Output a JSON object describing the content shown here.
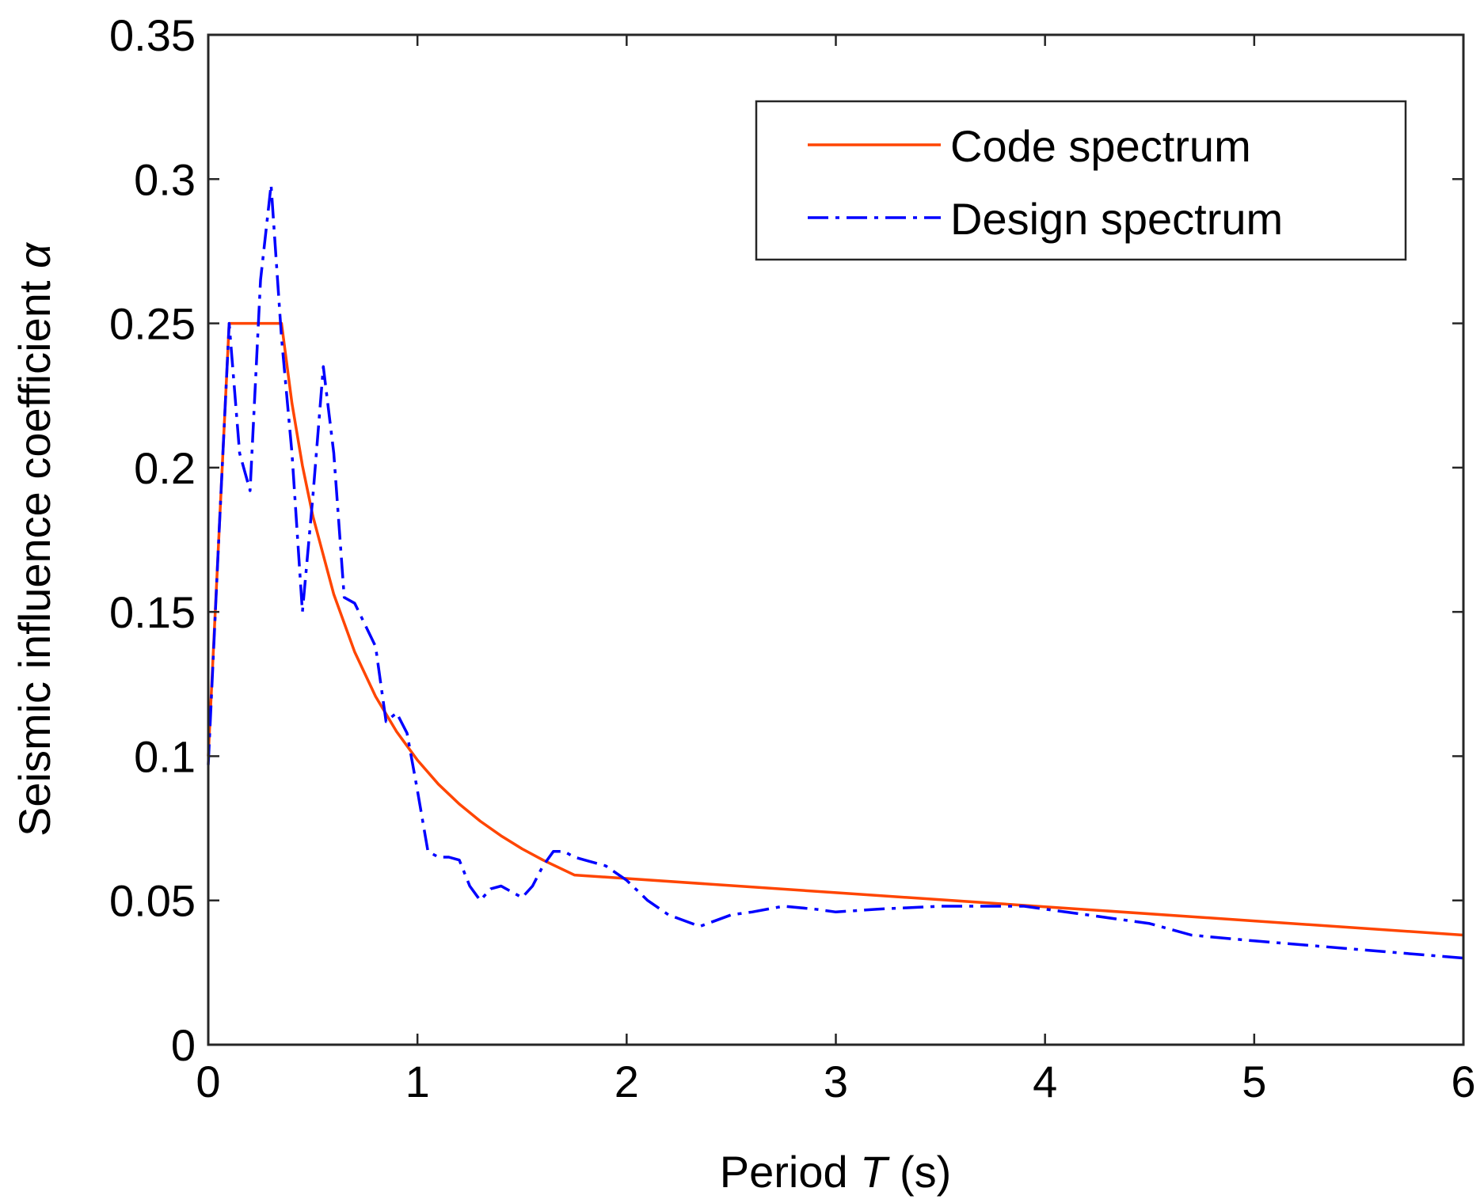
{
  "chart_data": {
    "type": "line",
    "xlabel": {
      "prefix": "Period ",
      "symbol": "T",
      "suffix": " (s)"
    },
    "ylabel": {
      "prefix": "Seismic influence coefficient ",
      "symbol": "α"
    },
    "xlim": [
      0,
      6
    ],
    "ylim": [
      0,
      0.35
    ],
    "xticks": [
      0,
      1,
      2,
      3,
      4,
      5,
      6
    ],
    "xtick_labels": [
      "0",
      "1",
      "2",
      "3",
      "4",
      "5",
      "6"
    ],
    "yticks": [
      0,
      0.05,
      0.1,
      0.15,
      0.2,
      0.25,
      0.3,
      0.35
    ],
    "ytick_labels": [
      "0",
      "0.05",
      "0.1",
      "0.15",
      "0.2",
      "0.25",
      "0.3",
      "0.35"
    ],
    "grid": false,
    "legend_position": "top-right",
    "series": [
      {
        "name": "Code spectrum",
        "color": "#ff4500",
        "style": "solid",
        "x": [
          0,
          0.1,
          0.35,
          0.4,
          0.45,
          0.5,
          0.6,
          0.7,
          0.8,
          0.9,
          1.0,
          1.1,
          1.2,
          1.3,
          1.4,
          1.5,
          1.6,
          1.75,
          2.0,
          3.0,
          4.0,
          5.0,
          6.0
        ],
        "values": [
          0.1,
          0.25,
          0.25,
          0.2223,
          0.2007,
          0.1832,
          0.1561,
          0.1361,
          0.1207,
          0.1085,
          0.0986,
          0.0903,
          0.0834,
          0.0775,
          0.0724,
          0.0679,
          0.064,
          0.0588,
          0.0576,
          0.0527,
          0.0478,
          0.0429,
          0.038
        ]
      },
      {
        "name": "Design spectrum",
        "color": "#0000ff",
        "style": "dashdot",
        "x": [
          0,
          0.05,
          0.1,
          0.15,
          0.2,
          0.25,
          0.3,
          0.35,
          0.4,
          0.45,
          0.5,
          0.55,
          0.6,
          0.65,
          0.7,
          0.8,
          0.85,
          0.9,
          0.95,
          1.0,
          1.05,
          1.1,
          1.15,
          1.2,
          1.25,
          1.3,
          1.35,
          1.4,
          1.45,
          1.5,
          1.55,
          1.6,
          1.65,
          1.7,
          1.75,
          1.8,
          1.9,
          2.0,
          2.1,
          2.2,
          2.35,
          2.5,
          2.6,
          2.75,
          2.9,
          3.0,
          3.2,
          3.5,
          3.7,
          3.9,
          4.0,
          4.2,
          4.5,
          4.7,
          5.0,
          5.5,
          6.0
        ],
        "values": [
          0.097,
          0.175,
          0.25,
          0.205,
          0.192,
          0.265,
          0.298,
          0.245,
          0.205,
          0.15,
          0.19,
          0.235,
          0.205,
          0.155,
          0.153,
          0.138,
          0.112,
          0.115,
          0.108,
          0.088,
          0.067,
          0.065,
          0.065,
          0.064,
          0.055,
          0.05,
          0.054,
          0.055,
          0.053,
          0.051,
          0.055,
          0.062,
          0.067,
          0.067,
          0.065,
          0.064,
          0.062,
          0.057,
          0.05,
          0.045,
          0.041,
          0.045,
          0.046,
          0.048,
          0.047,
          0.046,
          0.047,
          0.048,
          0.048,
          0.048,
          0.047,
          0.045,
          0.042,
          0.038,
          0.036,
          0.033,
          0.03
        ]
      }
    ]
  }
}
